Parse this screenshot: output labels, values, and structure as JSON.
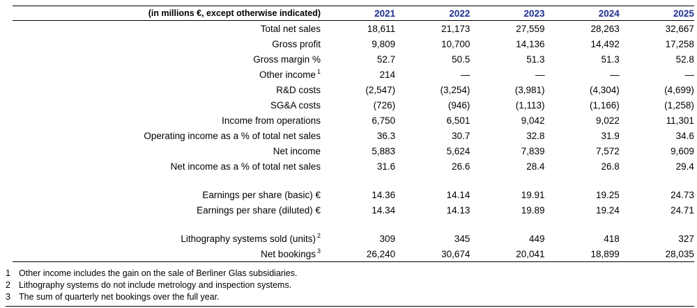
{
  "colors": {
    "year_header": "#1c2f93",
    "rule": "#000000"
  },
  "table": {
    "unit_label": "(in millions €, except otherwise indicated)",
    "years": [
      "2021",
      "2022",
      "2023",
      "2024",
      "2025"
    ],
    "rows": [
      {
        "label": "Total net sales",
        "sup": "",
        "values": [
          "18,611",
          "21,173",
          "27,559",
          "28,263",
          "32,667"
        ]
      },
      {
        "label": "Gross profit",
        "sup": "",
        "values": [
          "9,809",
          "10,700",
          "14,136",
          "14,492",
          "17,258"
        ]
      },
      {
        "label": "Gross margin %",
        "sup": "",
        "values": [
          "52.7",
          "50.5",
          "51.3",
          "51.3",
          "52.8"
        ]
      },
      {
        "label": "Other income",
        "sup": "1",
        "values": [
          "214",
          "—",
          "—",
          "—",
          "—"
        ]
      },
      {
        "label": "R&D costs",
        "sup": "",
        "values": [
          "(2,547)",
          "(3,254)",
          "(3,981)",
          "(4,304)",
          "(4,699)"
        ]
      },
      {
        "label": "SG&A costs",
        "sup": "",
        "values": [
          "(726)",
          "(946)",
          "(1,113)",
          "(1,166)",
          "(1,258)"
        ]
      },
      {
        "label": "Income from operations",
        "sup": "",
        "values": [
          "6,750",
          "6,501",
          "9,042",
          "9,022",
          "11,301"
        ]
      },
      {
        "label": "Operating income as a % of total net sales",
        "sup": "",
        "values": [
          "36.3",
          "30.7",
          "32.8",
          "31.9",
          "34.6"
        ]
      },
      {
        "label": "Net income",
        "sup": "",
        "values": [
          "5,883",
          "5,624",
          "7,839",
          "7,572",
          "9,609"
        ]
      },
      {
        "label": "Net income as a % of total net sales",
        "sup": "",
        "values": [
          "31.6",
          "26.6",
          "28.4",
          "26.8",
          "29.4"
        ]
      },
      {
        "spacer": true
      },
      {
        "label": "Earnings per share (basic) €",
        "sup": "",
        "values": [
          "14.36",
          "14.14",
          "19.91",
          "19.25",
          "24.73"
        ]
      },
      {
        "label": "Earnings per share (diluted) €",
        "sup": "",
        "values": [
          "14.34",
          "14.13",
          "19.89",
          "19.24",
          "24.71"
        ]
      },
      {
        "spacer": true
      },
      {
        "label": "Lithography systems sold (units)",
        "sup": "2",
        "values": [
          "309",
          "345",
          "449",
          "418",
          "327"
        ]
      },
      {
        "label": "Net bookings",
        "sup": "3",
        "values": [
          "26,240",
          "30,674",
          "20,041",
          "18,899",
          "28,035"
        ]
      }
    ]
  },
  "footnotes": [
    {
      "num": "1",
      "text": "Other income includes the gain on the sale of Berliner Glas subsidiaries."
    },
    {
      "num": "2",
      "text": "Lithography systems do not include metrology and inspection systems."
    },
    {
      "num": "3",
      "text": "The sum of quarterly net bookings over the full year."
    }
  ]
}
